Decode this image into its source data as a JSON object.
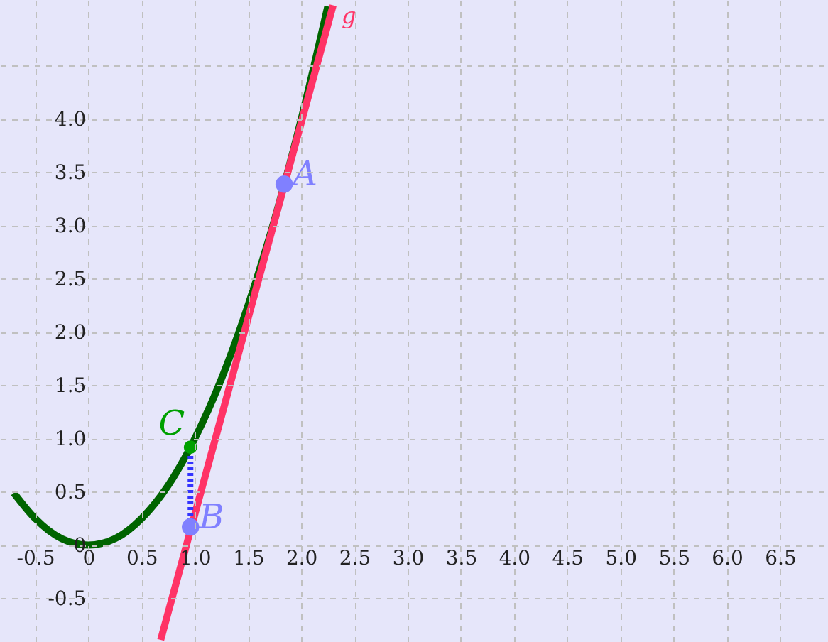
{
  "chart_data": {
    "type": "line",
    "xlim": [
      -0.83,
      6.95
    ],
    "ylim": [
      -0.91,
      5.12
    ],
    "xticks": [
      -0.5,
      0,
      0.5,
      {
        "value": 1,
        "label": "1.0"
      },
      1.5,
      {
        "value": 2,
        "label": "2.0"
      },
      2.5,
      {
        "value": 3,
        "label": "3.0"
      },
      3.5,
      {
        "value": 4,
        "label": "4.0"
      },
      4.5,
      {
        "value": 5,
        "label": "5.0"
      },
      5.5,
      {
        "value": 6,
        "label": "6.0"
      },
      6.5
    ],
    "yticks": [
      -0.5,
      0,
      0.5,
      {
        "value": 1,
        "label": "1.0"
      },
      1.5,
      {
        "value": 2,
        "label": "2.0"
      },
      2.5,
      {
        "value": 3,
        "label": "3.0"
      },
      3.5,
      {
        "value": 4,
        "label": "4.0"
      },
      {
        "value": 4.5,
        "label": null
      }
    ],
    "grid": true,
    "series": [
      {
        "color": "#006400",
        "line_style": "solid",
        "x": [
          -0.7,
          -0.5,
          -0.25,
          0,
          0.25,
          0.5,
          0.75,
          1,
          1.25,
          1.5,
          1.75,
          2,
          2.25
        ],
        "values": [
          0.49,
          0.25,
          0.06,
          0,
          0.06,
          0.25,
          0.56,
          1,
          1.56,
          2.25,
          3.06,
          4,
          5.06
        ]
      },
      {
        "name": "g",
        "color": "#ff3366",
        "line_style": "solid",
        "x": [
          0.68,
          2.3
        ],
        "values": [
          -0.89,
          5.07
        ]
      },
      {
        "color": "#3333ff",
        "line_style": "dotted",
        "x": [
          0.96,
          0.96
        ],
        "values": [
          0.17,
          0.92
        ]
      },
      {
        "name": "A",
        "type": "scatter",
        "color": "#8080ff",
        "x": [
          1.84
        ],
        "values": [
          3.39
        ]
      },
      {
        "name": "B",
        "type": "scatter",
        "color": "#8080ff",
        "x": [
          0.96
        ],
        "values": [
          0.17
        ]
      },
      {
        "name": "C",
        "type": "scatter",
        "color": "#00a000",
        "x": [
          0.96
        ],
        "values": [
          0.92
        ]
      }
    ]
  }
}
